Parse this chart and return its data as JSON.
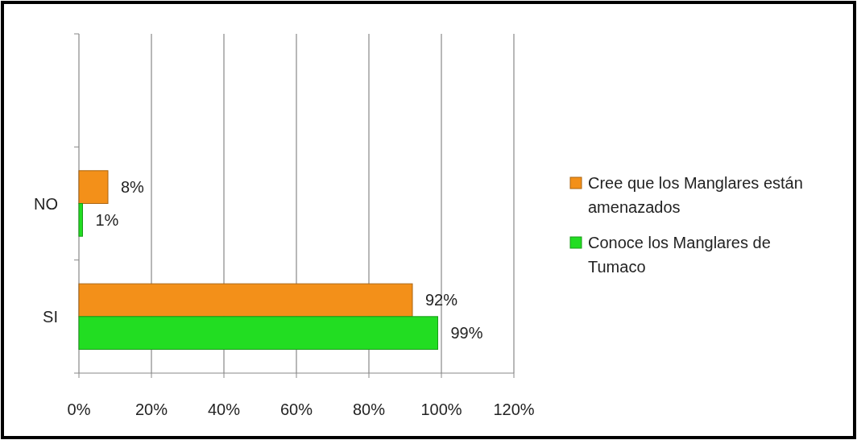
{
  "chart_data": {
    "type": "bar",
    "orientation": "horizontal",
    "categories": [
      null,
      "NO",
      "SI"
    ],
    "series": [
      {
        "name": "Cree que los Manglares están amenazados",
        "color": "#f39019",
        "values": [
          null,
          8,
          92
        ],
        "value_labels": [
          null,
          "8%",
          "92%"
        ]
      },
      {
        "name": "Conoce los Manglares de Tumaco",
        "color": "#22dd22",
        "values": [
          null,
          1,
          99
        ],
        "value_labels": [
          null,
          "1%",
          "99%"
        ]
      }
    ],
    "xlim": [
      0,
      120
    ],
    "xticks": [
      {
        "value": 0,
        "label": "0%"
      },
      {
        "value": 20,
        "label": "20%"
      },
      {
        "value": 40,
        "label": "40%"
      },
      {
        "value": 60,
        "label": "60%"
      },
      {
        "value": 80,
        "label": "80%"
      },
      {
        "value": 100,
        "label": "100%"
      },
      {
        "value": 120,
        "label": "120%"
      }
    ],
    "grid": "x",
    "legend": "right"
  }
}
